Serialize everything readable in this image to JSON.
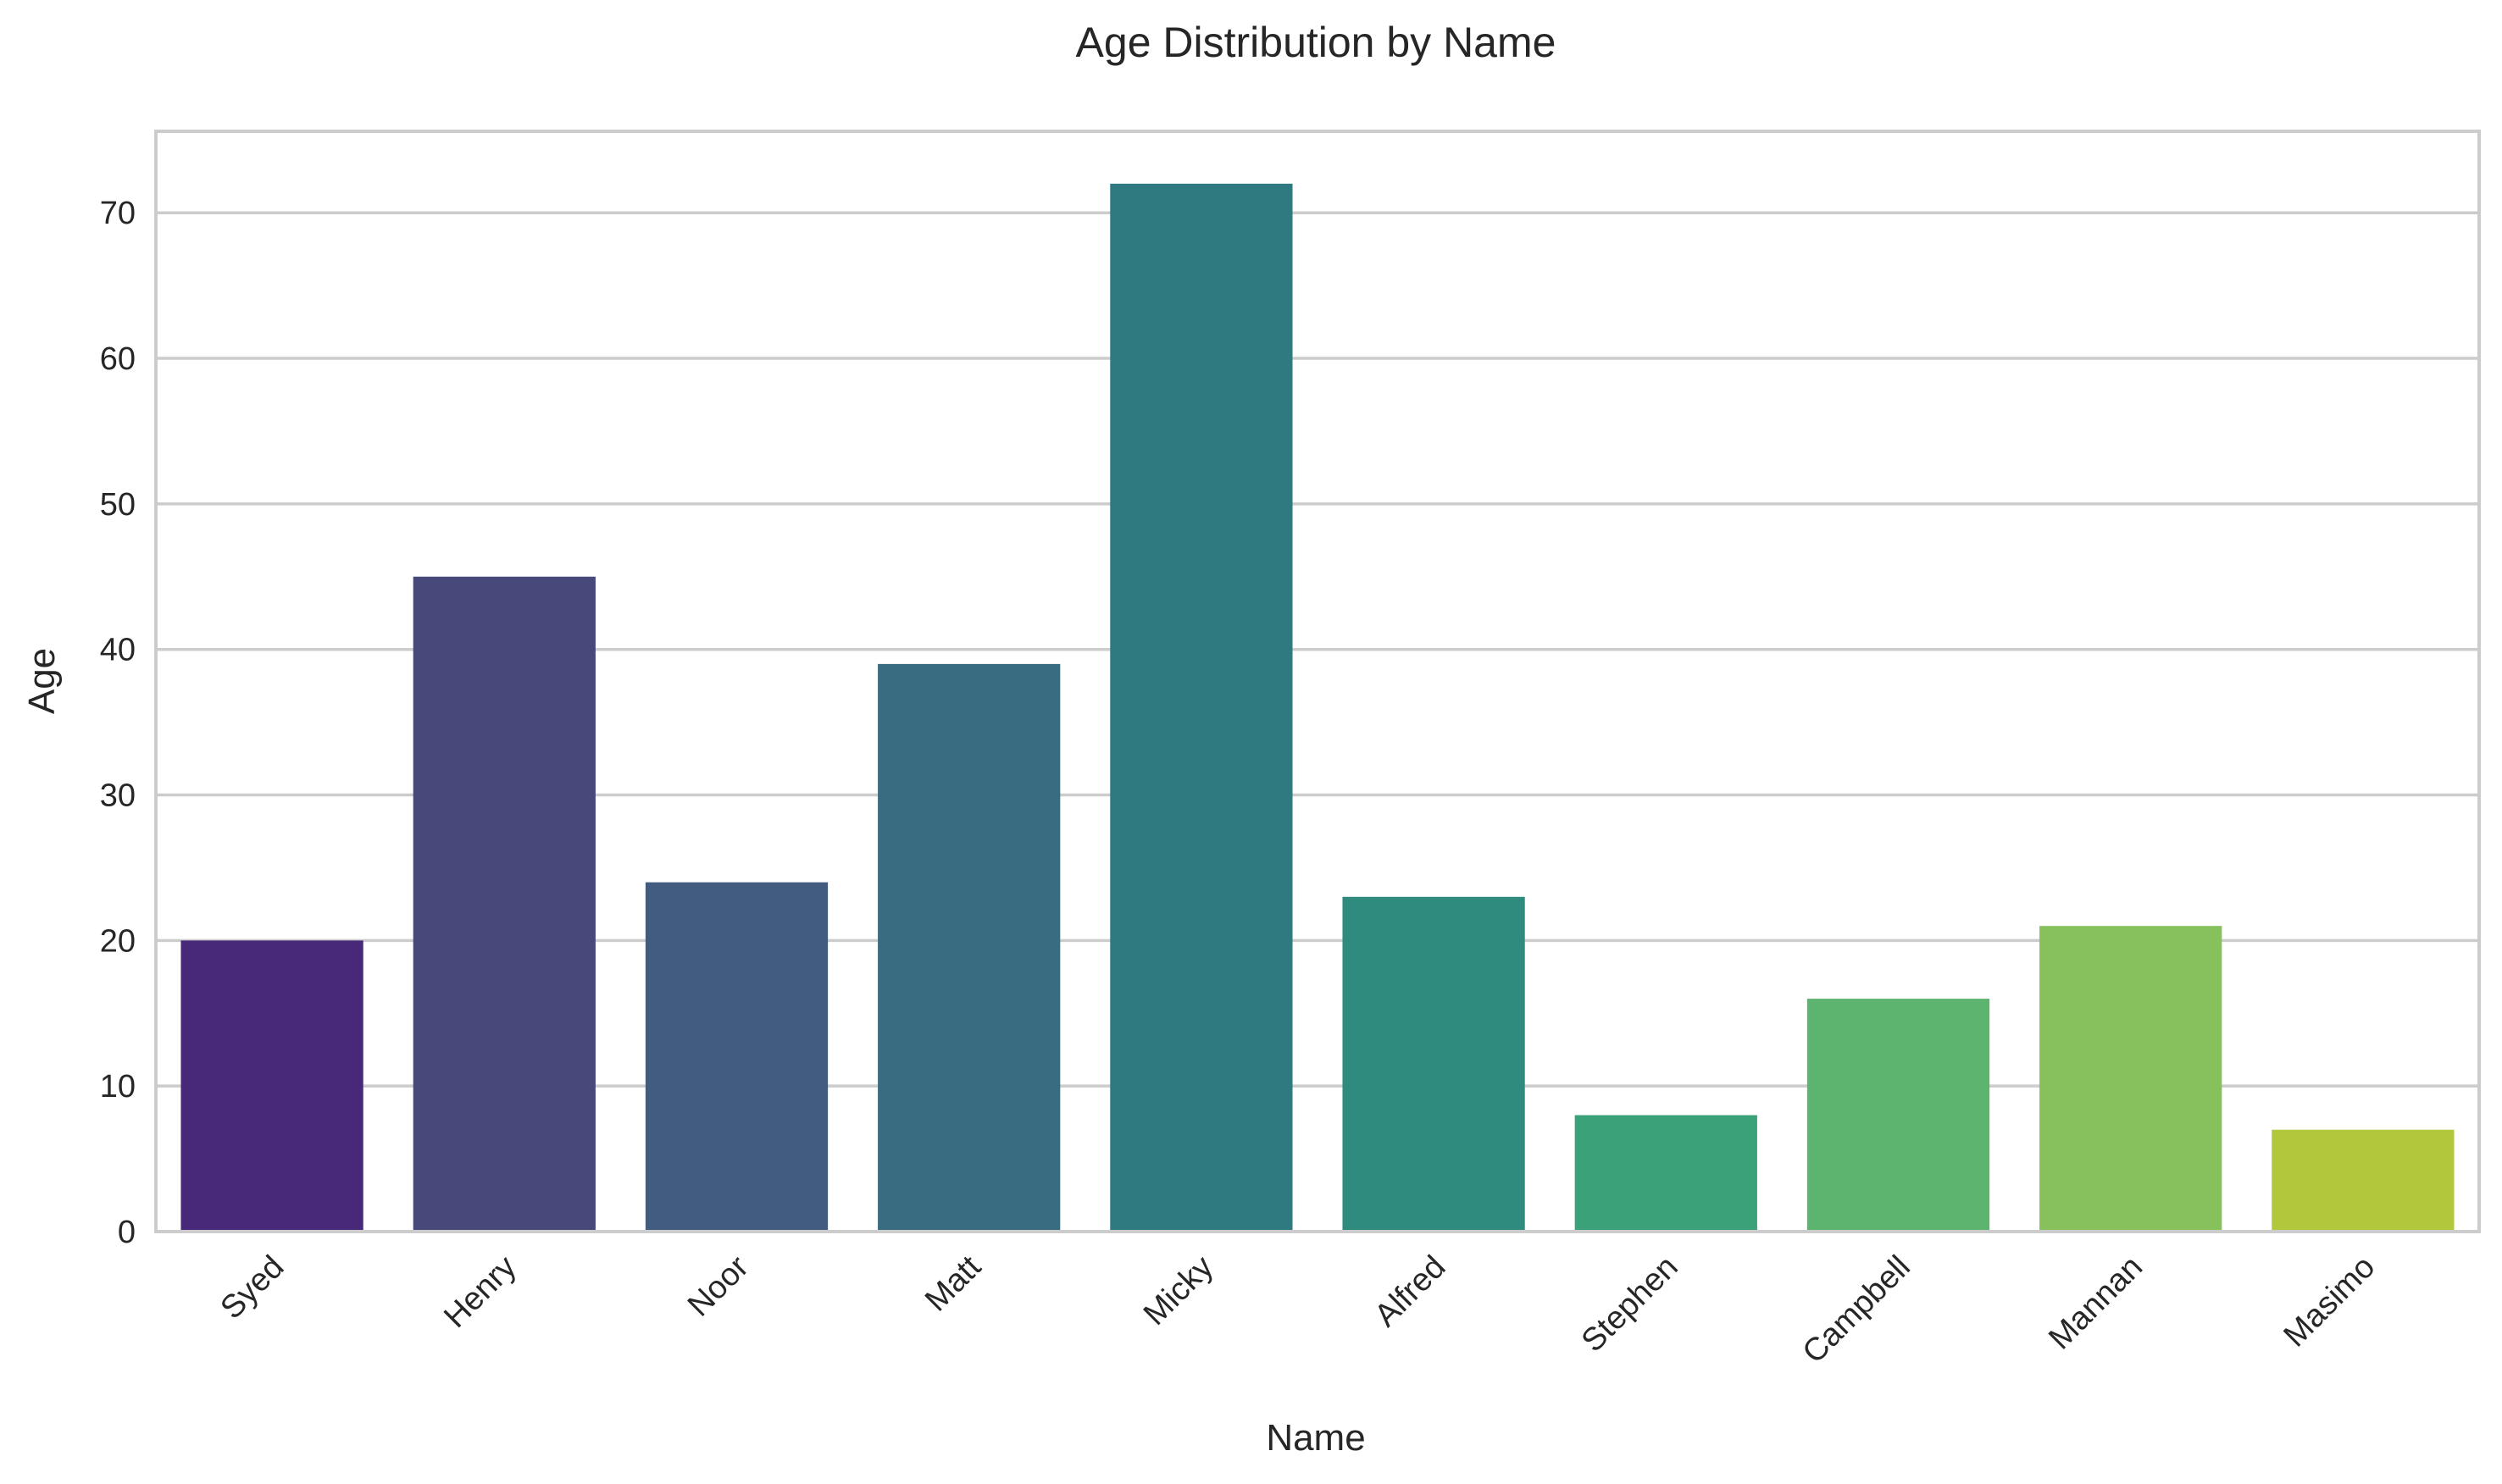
{
  "chart_data": {
    "type": "bar",
    "title": "Age Distribution by Name",
    "xlabel": "Name",
    "ylabel": "Age",
    "categories": [
      "Syed",
      "Henry",
      "Noor",
      "Matt",
      "Micky",
      "Alfred",
      "Stephen",
      "Campbell",
      "Mannan",
      "Masimo"
    ],
    "values": [
      20,
      45,
      24,
      39,
      72,
      23,
      8,
      16,
      21,
      7
    ],
    "colors": [
      "#482878",
      "#48497b",
      "#425c80",
      "#3a6c81",
      "#2f7a80",
      "#2e8b7e",
      "#3aa178",
      "#5cb46e",
      "#87c15c",
      "#b2c73b"
    ],
    "ylim": [
      0,
      75.6
    ],
    "yticks": [
      "0",
      "10",
      "20",
      "30",
      "40",
      "50",
      "60",
      "70"
    ],
    "grid": true,
    "grid_axis": "y"
  }
}
